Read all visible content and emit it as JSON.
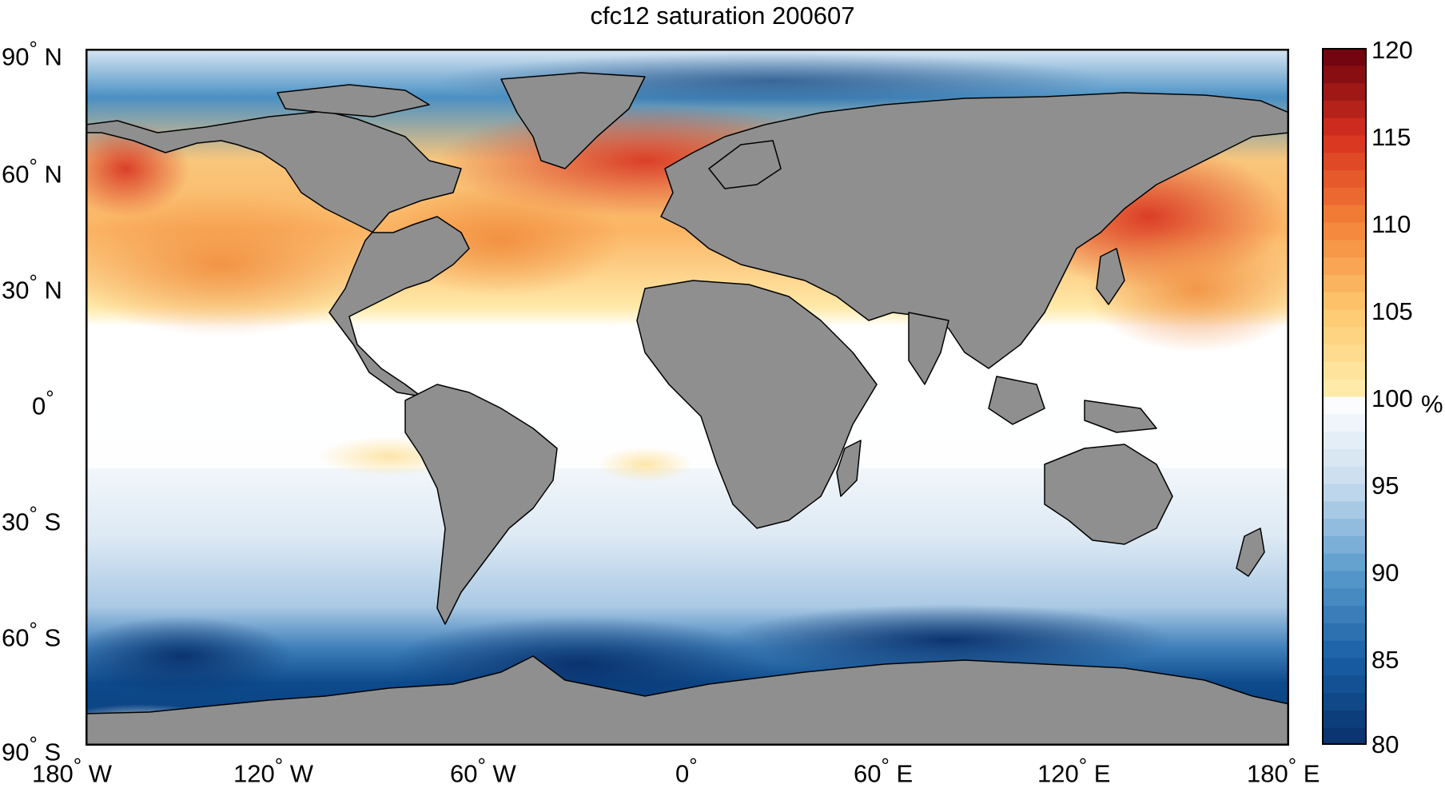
{
  "title": "cfc12 saturation 200607",
  "lat_labels": [
    {
      "deg": "90",
      "hemi": "N"
    },
    {
      "deg": "60",
      "hemi": "N"
    },
    {
      "deg": "30",
      "hemi": "N"
    },
    {
      "deg": "0",
      "hemi": ""
    },
    {
      "deg": "30",
      "hemi": "S"
    },
    {
      "deg": "60",
      "hemi": "S"
    },
    {
      "deg": "90",
      "hemi": "S"
    }
  ],
  "lon_labels": [
    {
      "deg": "180",
      "hemi": "W"
    },
    {
      "deg": "120",
      "hemi": "W"
    },
    {
      "deg": "60",
      "hemi": "W"
    },
    {
      "deg": "0",
      "hemi": ""
    },
    {
      "deg": "60",
      "hemi": "E"
    },
    {
      "deg": "120",
      "hemi": "E"
    },
    {
      "deg": "180",
      "hemi": "E"
    }
  ],
  "colorbar": {
    "ticks": [
      "120",
      "115",
      "110",
      "105",
      "100",
      "95",
      "90",
      "85",
      "80"
    ],
    "unit": "%",
    "min": 80,
    "max": 120
  },
  "colors": {
    "land": "#8f8f8f",
    "saturated": "#ffffff",
    "deep_blue": "#08306b",
    "deep_red": "#67000d"
  }
}
